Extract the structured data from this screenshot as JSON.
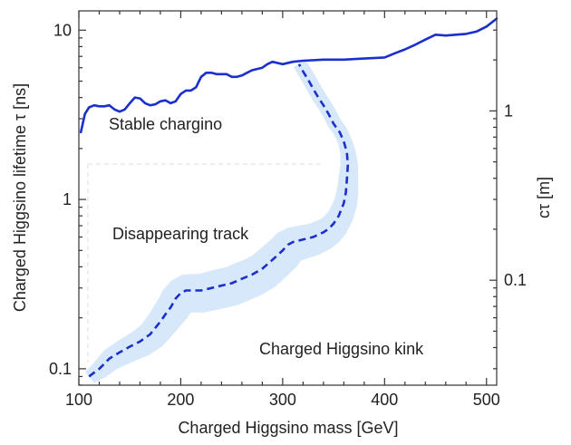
{
  "chart_data": {
    "type": "line",
    "xlabel": "Charged Higgsino mass [GeV]",
    "ylabel": "Charged Higgsino lifetime τ [ns]",
    "y2label": "cτ [m]",
    "xlim": [
      100,
      510
    ],
    "ylim": [
      0.08,
      13
    ],
    "yscale": "log",
    "y2scale": "log",
    "y2_factor": 0.29979,
    "x_ticks": [
      100,
      200,
      300,
      400,
      500
    ],
    "x_tick_labels": [
      "100",
      "200",
      "300",
      "400",
      "500"
    ],
    "y_ticks": [
      0.1,
      1,
      10
    ],
    "y_tick_labels": [
      "0.1",
      "1",
      "10"
    ],
    "y2_ticks": [
      0.1,
      1
    ],
    "y2_tick_labels": [
      "0.1",
      "1"
    ],
    "grid": false,
    "colors": {
      "line": "#1a2fcc",
      "band": "#d6e8fa",
      "dashed_guide": "#dddddd",
      "axes": "#333333"
    },
    "series": [
      {
        "style": "solid",
        "x": [
          102,
          106,
          110,
          115,
          120,
          125,
          130,
          135,
          140,
          145,
          150,
          155,
          160,
          165,
          170,
          175,
          180,
          185,
          190,
          195,
          200,
          205,
          210,
          215,
          220,
          225,
          230,
          235,
          240,
          245,
          250,
          255,
          260,
          265,
          270,
          275,
          280,
          285,
          290,
          295,
          300,
          310,
          320,
          340,
          360,
          380,
          400,
          410,
          420,
          430,
          440,
          450,
          460,
          470,
          480,
          490,
          500,
          510
        ],
        "y": [
          2.5,
          3.2,
          3.5,
          3.6,
          3.55,
          3.55,
          3.6,
          3.4,
          3.3,
          3.4,
          3.7,
          4.0,
          3.95,
          3.7,
          3.6,
          3.65,
          3.8,
          3.85,
          3.7,
          3.8,
          4.2,
          4.4,
          4.4,
          4.6,
          5.3,
          5.6,
          5.6,
          5.5,
          5.5,
          5.5,
          5.3,
          5.3,
          5.4,
          5.6,
          5.8,
          5.9,
          6.0,
          6.3,
          6.5,
          6.4,
          6.3,
          6.5,
          6.6,
          6.7,
          6.7,
          6.8,
          6.9,
          7.3,
          7.7,
          8.2,
          8.8,
          9.4,
          9.3,
          9.4,
          9.5,
          9.8,
          10.5,
          11.7
        ]
      },
      {
        "style": "dashed",
        "x": [
          110,
          115,
          120,
          125,
          130,
          140,
          150,
          160,
          170,
          180,
          185,
          190,
          195,
          200,
          205,
          210,
          220,
          230,
          240,
          250,
          260,
          270,
          280,
          290,
          300,
          305,
          310,
          320,
          330,
          340,
          345,
          350,
          355,
          360,
          362,
          363,
          364,
          363,
          360,
          356,
          350,
          345,
          340,
          335,
          330,
          325,
          320,
          316
        ],
        "y": [
          0.09,
          0.095,
          0.1,
          0.107,
          0.115,
          0.125,
          0.135,
          0.145,
          0.16,
          0.19,
          0.21,
          0.23,
          0.26,
          0.28,
          0.29,
          0.29,
          0.29,
          0.3,
          0.31,
          0.32,
          0.34,
          0.36,
          0.39,
          0.44,
          0.5,
          0.54,
          0.56,
          0.58,
          0.6,
          0.64,
          0.67,
          0.72,
          0.8,
          0.95,
          1.1,
          1.3,
          1.6,
          1.9,
          2.2,
          2.5,
          2.8,
          3.2,
          3.6,
          4.0,
          4.5,
          5.1,
          5.7,
          6.3
        ]
      }
    ],
    "annotations": [
      {
        "text": "Stable chargino",
        "x": 120,
        "y": 1.8
      },
      {
        "text": "Disappearing track",
        "x": 122,
        "y": 0.51
      },
      {
        "text": "Charged Higgsino kink",
        "x": 285,
        "y": 0.11
      }
    ]
  }
}
